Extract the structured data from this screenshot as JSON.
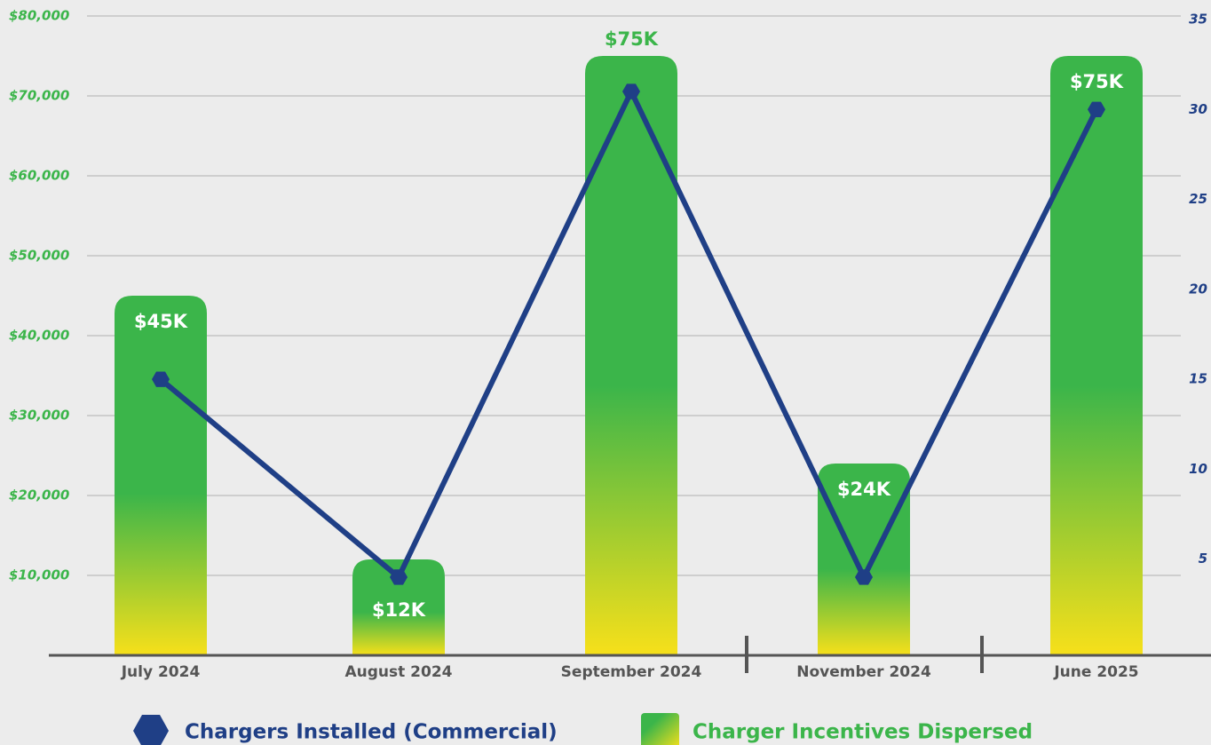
{
  "chart_data": {
    "type": "bar_line",
    "categories": [
      "July 2024",
      "August 2024",
      "September 2024",
      "November 2024",
      "June 2025"
    ],
    "series": [
      {
        "name": "Charger Incentives Dispersed",
        "type": "bar",
        "color": "#3bb54a",
        "color_end": "#f7e01a",
        "values": [
          45000,
          12000,
          75000,
          24000,
          75000
        ],
        "value_labels": [
          "$45K",
          "$12K",
          "$75K",
          "$24K",
          "$75K"
        ]
      },
      {
        "name": "Chargers Installed (Commercial)",
        "type": "line",
        "axis": "y2",
        "color": "#1f3f86",
        "values": [
          15,
          4,
          31,
          4,
          30
        ]
      }
    ],
    "ylim": [
      0,
      80000
    ],
    "yticks": [
      {
        "value": 10000,
        "label": "$10,000"
      },
      {
        "value": 20000,
        "label": "$20,000"
      },
      {
        "value": 30000,
        "label": "$30,000"
      },
      {
        "value": 40000,
        "label": "$40,000"
      },
      {
        "value": 50000,
        "label": "$50,000"
      },
      {
        "value": 60000,
        "label": "$60,000"
      },
      {
        "value": 70000,
        "label": "$70,000"
      },
      {
        "value": 80000,
        "label": "$80,000"
      }
    ],
    "y2lim": [
      0,
      35
    ],
    "y2ticks": [
      5,
      10,
      15,
      20,
      25,
      30,
      35
    ],
    "grid": true
  }
}
